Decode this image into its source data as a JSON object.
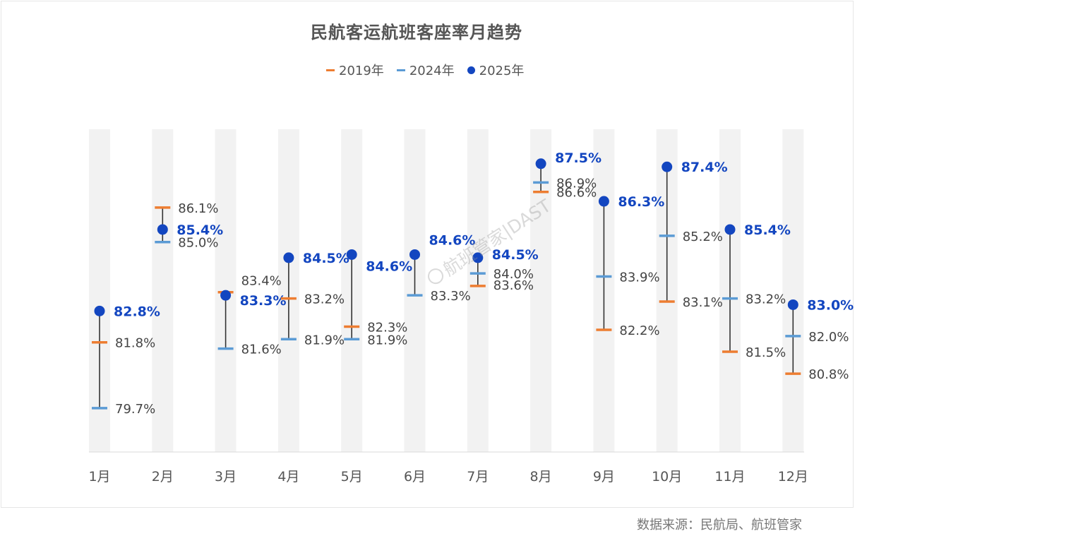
{
  "chart_data": {
    "type": "dot-range",
    "title": "民航客运航班客座率月趋势",
    "categories": [
      "1月",
      "2月",
      "3月",
      "4月",
      "5月",
      "6月",
      "7月",
      "8月",
      "9月",
      "10月",
      "11月",
      "12月"
    ],
    "series": [
      {
        "name": "2019年",
        "color": "#ed7d31",
        "values": [
          81.8,
          86.1,
          83.4,
          83.2,
          82.3,
          null,
          83.6,
          86.6,
          82.2,
          83.1,
          81.5,
          80.8
        ]
      },
      {
        "name": "2024年",
        "color": "#5b9bd5",
        "values": [
          79.7,
          85.0,
          81.6,
          81.9,
          81.9,
          83.3,
          84.0,
          86.9,
          83.9,
          85.2,
          83.2,
          82.0
        ]
      },
      {
        "name": "2025年",
        "color": "#1346c0",
        "values": [
          82.8,
          85.4,
          83.3,
          84.5,
          84.6,
          84.6,
          84.5,
          87.5,
          86.3,
          87.4,
          85.4,
          83.0
        ]
      }
    ],
    "labels": {
      "2019": [
        "81.8%",
        "86.1%",
        "83.4%",
        "83.2%",
        "82.3%",
        null,
        "83.6%",
        "86.6%",
        "82.2%",
        "83.1%",
        "81.5%",
        "80.8%"
      ],
      "2024": [
        "79.7%",
        "85.0%",
        "81.6%",
        "81.9%",
        "81.9%",
        "83.3%",
        "84.0%",
        "86.9%",
        "83.9%",
        "85.2%",
        "83.2%",
        "82.0%"
      ],
      "2025": [
        "82.8%",
        "85.4%",
        "83.3%",
        "84.5%",
        "84.6%",
        "84.6%",
        "84.5%",
        "87.5%",
        "86.3%",
        "87.4%",
        "85.4%",
        "83.0%"
      ]
    },
    "ylim": [
      78.3,
      88.6
    ]
  },
  "legend": {
    "s2019": "2019年",
    "s2024": "2024年",
    "s2025": "2025年"
  },
  "source": "数据来源：民航局、航班管家",
  "watermark": "航班管家|DAST",
  "colors": {
    "c2019": "#ed7d31",
    "c2024": "#5b9bd5",
    "c2025": "#1346c0",
    "band": "#f2f2f2",
    "range_line": "#333333"
  }
}
